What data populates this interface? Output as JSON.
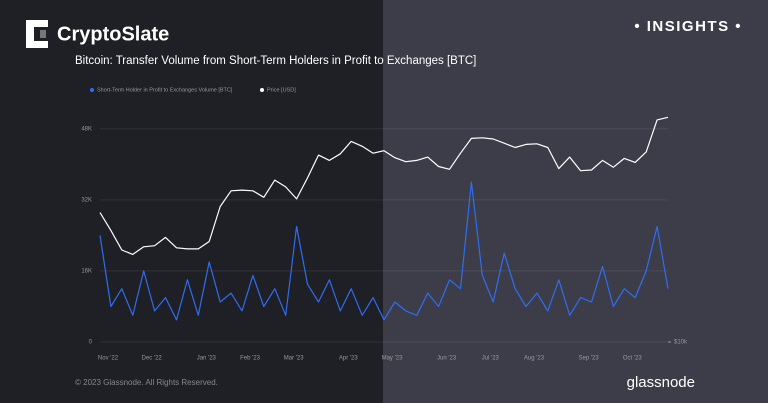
{
  "brand": "CryptoSlate",
  "badge": "• INSIGHTS •",
  "footer": {
    "copyright": "© 2023 Glassnode. All Rights Reserved.",
    "source": "glassnode"
  },
  "chart_data": {
    "type": "line",
    "title": "Bitcoin: Transfer Volume from Short-Term Holders in Profit to Exchanges [BTC]",
    "categories": [
      "Nov '22",
      null,
      null,
      null,
      "Dec '22",
      null,
      null,
      null,
      null,
      "Jan '23",
      null,
      null,
      null,
      "Feb '23",
      null,
      null,
      null,
      "Mar '23",
      null,
      null,
      null,
      null,
      "Apr '23",
      null,
      null,
      null,
      "May '23",
      null,
      null,
      null,
      null,
      "Jun '23",
      null,
      null,
      null,
      "Jul '23",
      null,
      null,
      null,
      "Aug '23",
      null,
      null,
      null,
      null,
      "Sep '23",
      null,
      null,
      null,
      "Oct '23",
      null,
      null,
      null,
      null
    ],
    "series": [
      {
        "name": "Short-Term Holder in Profit to Exchanges Volume [BTC]",
        "color": "#2f6df0",
        "values": [
          24000,
          8000,
          12000,
          6000,
          16000,
          7000,
          10000,
          5000,
          14000,
          6000,
          18000,
          9000,
          11000,
          7000,
          15000,
          8000,
          12000,
          6000,
          26000,
          13000,
          9000,
          14000,
          7000,
          12000,
          6000,
          10000,
          5000,
          9000,
          7000,
          6000,
          11000,
          8000,
          14000,
          12000,
          36000,
          15000,
          9000,
          20000,
          12000,
          8000,
          11000,
          7000,
          14000,
          6000,
          10000,
          9000,
          17000,
          8000,
          12000,
          10000,
          16000,
          26000,
          12000
        ]
      },
      {
        "name": "Price [USD]",
        "color": "#ffffff",
        "axis": "y2",
        "values": [
          20400,
          18500,
          16600,
          16200,
          16900,
          17000,
          17800,
          16800,
          16700,
          16700,
          17400,
          21100,
          23000,
          23100,
          23000,
          22200,
          24400,
          23500,
          22000,
          24700,
          28000,
          27200,
          28200,
          30200,
          29400,
          28300,
          28700,
          27600,
          27000,
          27200,
          27700,
          26300,
          25900,
          28300,
          30700,
          30800,
          30600,
          29900,
          29200,
          29700,
          29800,
          29200,
          26000,
          27700,
          25700,
          25800,
          27200,
          26200,
          27500,
          26900,
          28500,
          34000,
          34500
        ]
      }
    ],
    "ylim": [
      0,
      55600
    ],
    "yticks": [
      0,
      {
        "value": 16000,
        "label": "16K"
      },
      {
        "value": 32000,
        "label": "32K"
      },
      {
        "value": 48000,
        "label": "48K"
      }
    ],
    "y2lim": [
      10000,
      39000
    ],
    "y2log": true,
    "y2ticks": [
      {
        "value": 10000,
        "label": "$10k"
      }
    ],
    "grid": true
  }
}
